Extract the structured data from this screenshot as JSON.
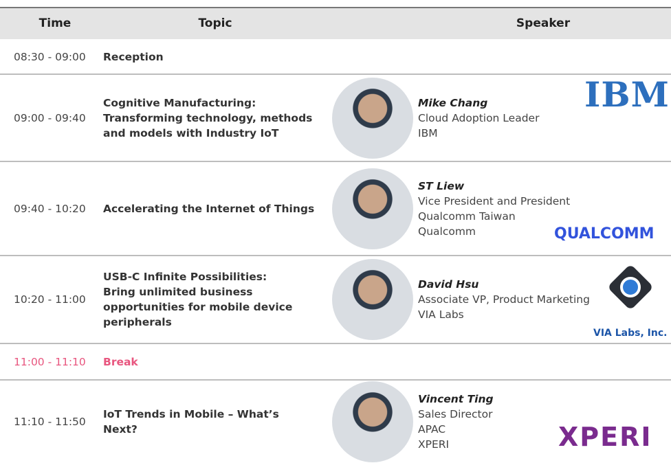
{
  "header": {
    "columns": [
      "Time",
      "Topic",
      "Speaker"
    ]
  },
  "sessions": [
    {
      "time": "08:30 - 09:00",
      "topic": [
        "Reception"
      ]
    },
    {
      "time": "09:00 - 09:40",
      "topic": [
        "Cognitive Manufacturing:",
        "Transforming technology, methods",
        "and models with Industry IoT"
      ],
      "speaker": {
        "name": "Mike Chang",
        "lines": [
          "Cloud Adoption Leader",
          "IBM"
        ],
        "logo": "IBM"
      }
    },
    {
      "time": "09:40 - 10:20",
      "topic": [
        "Accelerating the Internet of Things"
      ],
      "speaker": {
        "name": "ST Liew",
        "lines": [
          "Vice President and President",
          "Qualcomm Taiwan",
          "Qualcomm"
        ],
        "logo": "QUALCOMM"
      }
    },
    {
      "time": "10:20 - 11:00",
      "topic": [
        "USB-C Infinite Possibilities:",
        "Bring unlimited business",
        "opportunities for mobile device",
        "peripherals"
      ],
      "speaker": {
        "name": "David Hsu",
        "lines": [
          "Associate VP, Product Marketing",
          "VIA Labs"
        ],
        "logo": "VIA Labs, Inc."
      }
    },
    {
      "time": "11:00 - 11:10",
      "topic": [
        "Break"
      ]
    },
    {
      "time": "11:10 - 11:50",
      "topic": [
        "IoT Trends in Mobile – What’s",
        "Next?"
      ],
      "speaker": {
        "name": "Vincent Ting",
        "lines": [
          "Sales Director",
          "APAC",
          "XPERI"
        ],
        "logo": "XPERI"
      }
    }
  ]
}
